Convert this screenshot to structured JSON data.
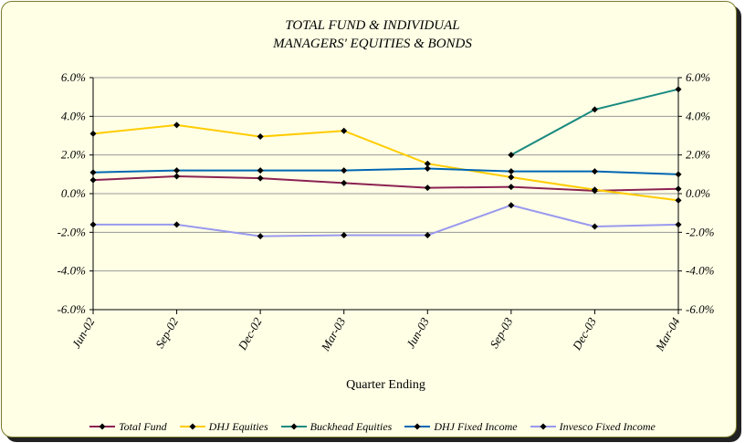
{
  "chart_data": {
    "type": "line",
    "title_line1": "TOTAL FUND  & INDIVIDUAL",
    "title_line2": "MANAGERS' EQUITIES & BONDS",
    "xlabel": "Quarter Ending",
    "ylabel": "",
    "categories": [
      "Jun-02",
      "Sep-02",
      "Dec-02",
      "Mar-03",
      "Jun-03",
      "Sep-03",
      "Dec-03",
      "Mar-04"
    ],
    "ylim": [
      -6.0,
      6.0
    ],
    "yticks": [
      "6.0%",
      "4.0%",
      "2.0%",
      "0.0%",
      "-2.0%",
      "-4.0%",
      "-6.0%"
    ],
    "ytick_values": [
      6,
      4,
      2,
      0,
      -2,
      -4,
      -6
    ],
    "grid": "horizontal",
    "legend_position": "bottom",
    "series": [
      {
        "name": "Total Fund",
        "color": "#8b2252",
        "values": [
          0.7,
          0.9,
          0.8,
          0.55,
          0.3,
          0.35,
          0.15,
          0.25
        ]
      },
      {
        "name": "DHJ Equities",
        "color": "#ffcc00",
        "values": [
          3.1,
          3.55,
          2.95,
          3.25,
          1.55,
          0.85,
          0.2,
          -0.35
        ]
      },
      {
        "name": "Buckhead Equities",
        "color": "#1a8a80",
        "values": [
          null,
          null,
          null,
          null,
          null,
          2.0,
          4.35,
          5.4
        ]
      },
      {
        "name": "DHJ Fixed Income",
        "color": "#0066b3",
        "values": [
          1.1,
          1.2,
          1.2,
          1.2,
          1.3,
          1.15,
          1.15,
          1.0
        ]
      },
      {
        "name": "Invesco Fixed Income",
        "color": "#9999ee",
        "values": [
          -1.6,
          -1.6,
          -2.2,
          -2.15,
          -2.15,
          -0.6,
          -1.7,
          -1.6
        ]
      }
    ]
  }
}
